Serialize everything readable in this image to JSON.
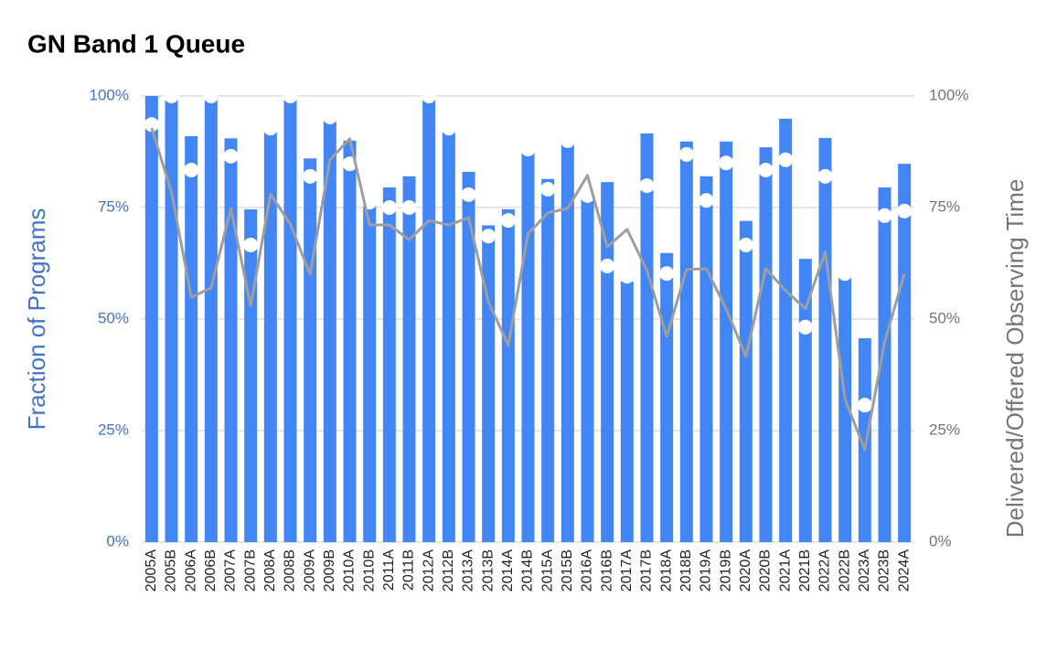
{
  "chart_data": {
    "type": "bar",
    "title": "GN Band 1 Queue",
    "y_label": "Fraction of Programs",
    "y2_label": "Delivered/Offered Observing Time",
    "categories": [
      "2005A",
      "2005B",
      "2006A",
      "2006B",
      "2007A",
      "2007B",
      "2008A",
      "2008B",
      "2009A",
      "2009B",
      "2010A",
      "2010B",
      "2011A",
      "2011B",
      "2012A",
      "2012B",
      "2013A",
      "2013B",
      "2014A",
      "2014B",
      "2015A",
      "2015B",
      "2016A",
      "2016B",
      "2017A",
      "2017B",
      "2018A",
      "2018B",
      "2019A",
      "2019B",
      "2020A",
      "2020B",
      "2021A",
      "2021B",
      "2022A",
      "2022B",
      "2023A",
      "2023B",
      "2024A"
    ],
    "series": [
      {
        "type": "bar",
        "color": "#4285f4",
        "values": [
          100,
          100,
          91,
          100,
          90.5,
          74.6,
          93,
          100,
          86,
          95,
          90,
          77,
          79.5,
          82,
          100,
          93,
          83,
          71,
          74.6,
          87.7,
          81.4,
          90,
          77.7,
          80.7,
          58.4,
          91.6,
          64.8,
          89.8,
          82,
          89.8,
          72,
          88.5,
          94.9,
          63.5,
          90.6,
          60.2,
          45.7,
          79.5,
          84.8
        ]
      },
      {
        "type": "scatter",
        "color": "#ffffff",
        "values": [
          93.6,
          100,
          83.4,
          100,
          86.5,
          66.6,
          92.8,
          100,
          82,
          95.3,
          84.8,
          76.2,
          75,
          75,
          100,
          92.8,
          77.9,
          68.6,
          72.1,
          88.1,
          79.1,
          90,
          77.7,
          61.9,
          59.6,
          79.9,
          60.2,
          86.9,
          76.6,
          85,
          66.6,
          83.4,
          85.7,
          48.2,
          82,
          60.2,
          30.7,
          73.2,
          74.2
        ]
      },
      {
        "type": "line",
        "axis": "y2",
        "color": "#9e9e9e",
        "values": [
          92.8,
          78.5,
          54.9,
          57,
          74.8,
          52.9,
          78,
          71.3,
          60,
          85.7,
          90.4,
          71.1,
          71.1,
          67.8,
          72.1,
          71.1,
          72.7,
          53.9,
          44.1,
          69.1,
          73.8,
          74.8,
          82.2,
          66.2,
          70.1,
          60.9,
          46.1,
          61.1,
          61.3,
          52.3,
          41.6,
          61.3,
          56.4,
          52.3,
          65,
          32,
          20.7,
          44.9,
          60.2
        ]
      }
    ],
    "ylim": [
      0,
      100
    ],
    "yticks": [
      {
        "value": 0,
        "label": "0%"
      },
      {
        "value": 25,
        "label": "25%"
      },
      {
        "value": 50,
        "label": "50%"
      },
      {
        "value": 75,
        "label": "75%"
      },
      {
        "value": 100,
        "label": "100%"
      }
    ],
    "y2lim": [
      0,
      100
    ],
    "y2ticks": [
      {
        "value": 0,
        "label": "0%"
      },
      {
        "value": 25,
        "label": "25%"
      },
      {
        "value": 50,
        "label": "50%"
      },
      {
        "value": 75,
        "label": "75%"
      },
      {
        "value": 100,
        "label": "100%"
      }
    ],
    "grid": true
  }
}
